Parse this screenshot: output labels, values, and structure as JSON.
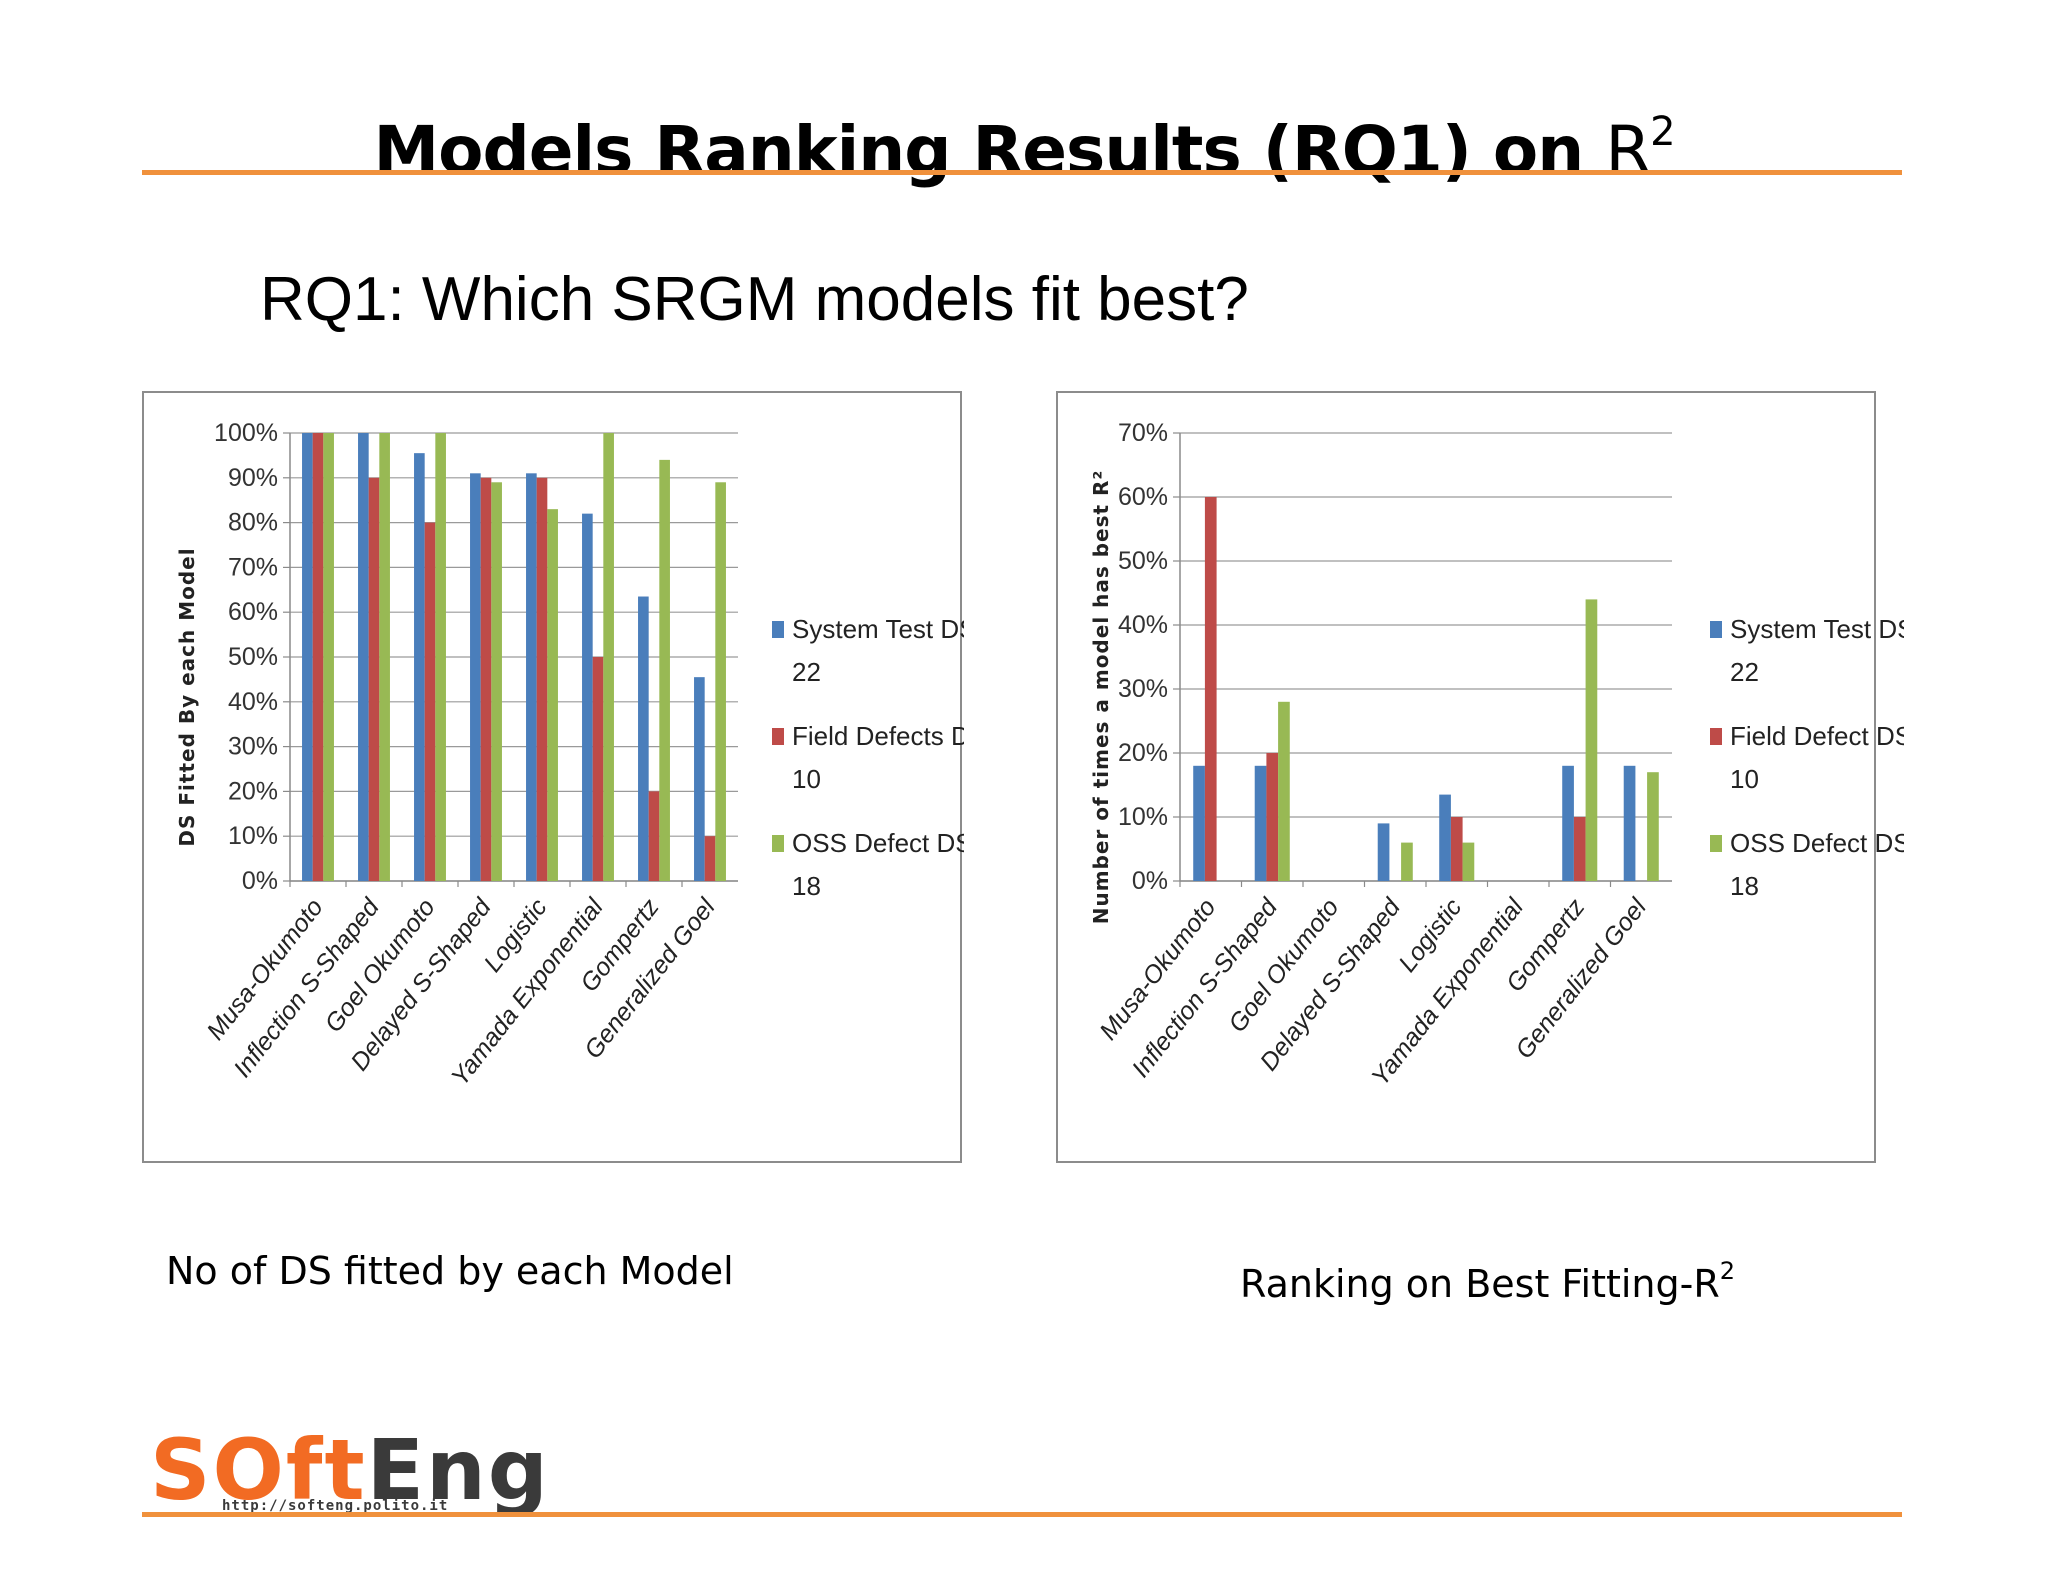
{
  "slide": {
    "title": "Models Ranking Results (RQ1) on",
    "title_r": "R",
    "title_sup": "2",
    "question": "RQ1: Which SRGM models fit best?",
    "caption_left": "No of DS fitted by each Model",
    "caption_right": "Ranking on Best Fitting-R",
    "caption_right_sup": "2",
    "accent_color": "#f0913c"
  },
  "logo": {
    "word_orange": "SOft",
    "word_dark": "Eng",
    "url": "http://softeng.polito.it"
  },
  "colors": {
    "series1": "#4a7ebb",
    "series2": "#be4b48",
    "series3": "#98b954"
  },
  "chart_data": [
    {
      "type": "bar",
      "title": "",
      "ylabel": "DS Fitted By each Model",
      "ylim": [
        0,
        100
      ],
      "yticks": [
        0,
        10,
        20,
        30,
        40,
        50,
        60,
        70,
        80,
        90,
        100
      ],
      "ytick_labels": [
        "0%",
        "10%",
        "20%",
        "30%",
        "40%",
        "50%",
        "60%",
        "70%",
        "80%",
        "90%",
        "100%"
      ],
      "grid": true,
      "legend_position": "right",
      "categories": [
        "Musa-Okumoto",
        "Inflection S-Shaped",
        "Goel Okumoto",
        "Delayed S-Shaped",
        "Logistic",
        "Yamada Exponential",
        "Gompertz",
        "Generalized Goel"
      ],
      "series": [
        {
          "name_line1": "System Test DS",
          "name_line2": "22",
          "values": [
            100,
            100,
            95.5,
            91,
            91,
            82,
            63.5,
            45.5
          ]
        },
        {
          "name_line1": "Field Defects DS",
          "name_line2": "10",
          "values": [
            100,
            90,
            80,
            90,
            90,
            50,
            20,
            10
          ]
        },
        {
          "name_line1": "OSS Defect DS",
          "name_line2": "18",
          "values": [
            100,
            100,
            100,
            89,
            83,
            100,
            94,
            89
          ]
        }
      ]
    },
    {
      "type": "bar",
      "title": "",
      "ylabel": "Number of times a model has best R²",
      "ylim": [
        0,
        70
      ],
      "yticks": [
        0,
        10,
        20,
        30,
        40,
        50,
        60,
        70
      ],
      "ytick_labels": [
        "0%",
        "10%",
        "20%",
        "30%",
        "40%",
        "50%",
        "60%",
        "70%"
      ],
      "grid": true,
      "legend_position": "right",
      "categories": [
        "Musa-Okumoto",
        "Inflection S-Shaped",
        "Goel Okumoto",
        "Delayed S-Shaped",
        "Logistic",
        "Yamada Exponential",
        "Gompertz",
        "Generalized Goel"
      ],
      "series": [
        {
          "name_line1": "System Test DS",
          "name_line2": "22",
          "values": [
            18,
            18,
            0,
            9,
            13.5,
            0,
            18,
            18
          ]
        },
        {
          "name_line1": "Field  Defect DS",
          "name_line2": "10",
          "values": [
            60,
            20,
            0,
            0,
            10,
            0,
            10,
            0
          ]
        },
        {
          "name_line1": "OSS Defect DS",
          "name_line2": "18",
          "values": [
            0,
            28,
            0,
            6,
            6,
            0,
            44,
            17
          ]
        }
      ]
    }
  ]
}
